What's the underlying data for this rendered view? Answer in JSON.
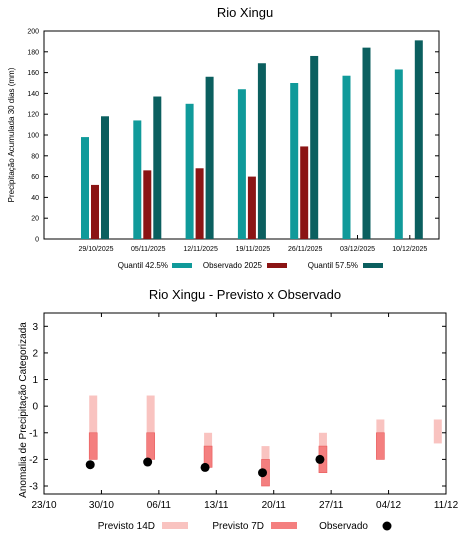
{
  "colors": {
    "quantil_42": "#109a9a",
    "observado": "#8b1414",
    "quantil_57": "#0b5f5f",
    "previsto_14d": "#f9c3c0",
    "previsto_7d": "#f47f7f",
    "observado_point": "#000000"
  },
  "chart_data": [
    {
      "type": "bar",
      "title": "Rio Xingu",
      "ylabel": "Precipitação Acumulada 30 dias (mm)",
      "ylim": [
        0,
        200
      ],
      "yticks": [
        "0",
        "20",
        "40",
        "60",
        "80",
        "100",
        "120",
        "140",
        "160",
        "180",
        "200"
      ],
      "categories": [
        "29/10/2025",
        "05/11/2025",
        "12/11/2025",
        "19/11/2025",
        "26/11/2025",
        "03/12/2025",
        "10/12/2025"
      ],
      "series": [
        {
          "name": "Quantil 42.5%",
          "values": [
            98,
            114,
            130,
            144,
            150,
            157,
            163
          ]
        },
        {
          "name": "Observado 2025",
          "values": [
            52,
            66,
            68,
            60,
            89,
            null,
            null
          ]
        },
        {
          "name": "Quantil 57.5%",
          "values": [
            118,
            137,
            156,
            169,
            176,
            184,
            191
          ]
        }
      ],
      "grid": false,
      "legend_position": "bottom"
    },
    {
      "type": "scatter",
      "title": "Rio Xingu - Previsto x Observado",
      "ylabel": "Anomalia de Precipitação Categorizada",
      "ylim": [
        -3.3,
        3.5
      ],
      "yticks": [
        "-3",
        "-2",
        "-1",
        "0",
        "1",
        "2",
        "3"
      ],
      "xticks": [
        "23/10",
        "30/10",
        "06/11",
        "13/11",
        "20/11",
        "27/11",
        "04/12",
        "11/12"
      ],
      "previsto_14d": [
        {
          "date": "29/10",
          "low": -2.0,
          "high": 0.4
        },
        {
          "date": "05/11",
          "low": -2.0,
          "high": 0.4
        },
        {
          "date": "12/11",
          "low": -2.0,
          "high": -1.0
        },
        {
          "date": "19/11",
          "low": -3.0,
          "high": -1.5
        },
        {
          "date": "26/11",
          "low": -2.5,
          "high": -1.0
        },
        {
          "date": "03/12",
          "low": -2.0,
          "high": -0.5
        },
        {
          "date": "10/12",
          "low": -1.4,
          "high": -0.5
        }
      ],
      "previsto_7d": [
        {
          "date": "29/10",
          "low": -2.0,
          "high": -1.0
        },
        {
          "date": "05/11",
          "low": -2.0,
          "high": -1.0
        },
        {
          "date": "12/11",
          "low": -2.3,
          "high": -1.5
        },
        {
          "date": "19/11",
          "low": -3.0,
          "high": -2.0
        },
        {
          "date": "26/11",
          "low": -2.5,
          "high": -1.5
        },
        {
          "date": "03/12",
          "low": -2.0,
          "high": -1.0
        }
      ],
      "observado": [
        {
          "date": "29/10",
          "value": -2.2
        },
        {
          "date": "05/11",
          "value": -2.1
        },
        {
          "date": "12/11",
          "value": -2.3
        },
        {
          "date": "19/11",
          "value": -2.5
        },
        {
          "date": "26/11",
          "value": -2.0
        }
      ],
      "legend": [
        "Previsto 14D",
        "Previsto 7D",
        "Observado"
      ],
      "grid": false,
      "legend_position": "bottom"
    }
  ]
}
